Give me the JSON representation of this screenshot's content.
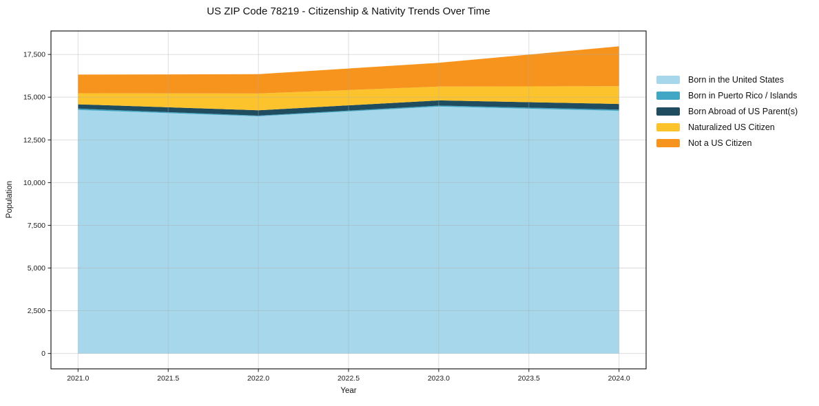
{
  "title": "US ZIP Code 78219 - Citizenship & Nativity Trends Over Time",
  "chart_data": {
    "type": "area",
    "stacked": true,
    "title": "US ZIP Code 78219 - Citizenship & Nativity Trends Over Time",
    "xlabel": "Year",
    "ylabel": "Population",
    "x": [
      2021,
      2022,
      2023,
      2024
    ],
    "series": [
      {
        "name": "Born in the United States",
        "color": "#A6D7EB",
        "values": [
          14250,
          13880,
          14450,
          14200
        ]
      },
      {
        "name": "Born in Puerto Rico / Islands",
        "color": "#42A6C5",
        "values": [
          80,
          40,
          60,
          70
        ]
      },
      {
        "name": "Born Abroad of US Parent(s)",
        "color": "#1F4D5F",
        "values": [
          250,
          310,
          300,
          330
        ]
      },
      {
        "name": "Naturalized US Citizen",
        "color": "#FCC32D",
        "values": [
          650,
          985,
          810,
          1045
        ]
      },
      {
        "name": "Not a US Citizen",
        "color": "#F7941E",
        "values": [
          1090,
          1130,
          1390,
          2330
        ]
      }
    ],
    "totals": [
      16320,
      16345,
      17010,
      17975
    ],
    "x_ticks": [
      {
        "value": 2021.0,
        "label": "2021.0"
      },
      {
        "value": 2021.5,
        "label": "2021.5"
      },
      {
        "value": 2022.0,
        "label": "2022.0"
      },
      {
        "value": 2022.5,
        "label": "2022.5"
      },
      {
        "value": 2023.0,
        "label": "2023.0"
      },
      {
        "value": 2023.5,
        "label": "2023.5"
      },
      {
        "value": 2024.0,
        "label": "2024.0"
      }
    ],
    "y_ticks": [
      {
        "value": 0,
        "label": "0"
      },
      {
        "value": 2500,
        "label": "2,500"
      },
      {
        "value": 5000,
        "label": "5,000"
      },
      {
        "value": 7500,
        "label": "7,500"
      },
      {
        "value": 10000,
        "label": "10,000"
      },
      {
        "value": 12500,
        "label": "12,500"
      },
      {
        "value": 15000,
        "label": "15,000"
      },
      {
        "value": 17500,
        "label": "17,500"
      }
    ],
    "xlim": [
      2020.85,
      2024.15
    ],
    "ylim": [
      -900,
      18875
    ],
    "grid": true,
    "grid_color": "#aaaaaa",
    "spine_color": "#1a1a1a",
    "background": "#ffffff",
    "legend_position": "right-outside"
  }
}
